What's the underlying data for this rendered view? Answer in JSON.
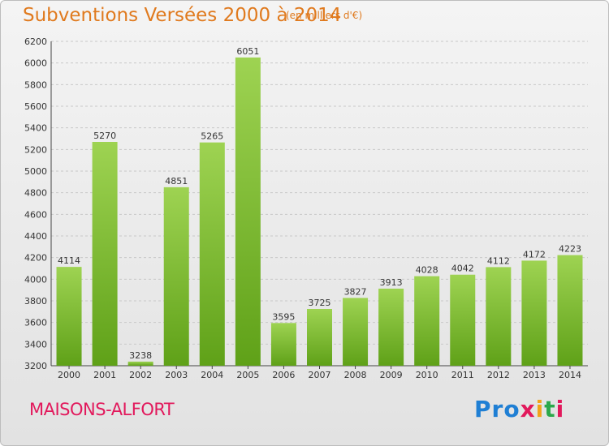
{
  "chart_data": {
    "type": "bar",
    "title": "Subventions Versées 2000 à 2014",
    "subtitle": "(en milliers d'€)",
    "categories": [
      "2000",
      "2001",
      "2002",
      "2003",
      "2004",
      "2005",
      "2006",
      "2007",
      "2008",
      "2009",
      "2010",
      "2011",
      "2012",
      "2013",
      "2014"
    ],
    "values": [
      4114,
      5270,
      3238,
      4851,
      5265,
      6051,
      3595,
      3725,
      3827,
      3913,
      4028,
      4042,
      4112,
      4172,
      4223
    ],
    "ylim": [
      3200,
      6200
    ],
    "yticks": [
      3200,
      3400,
      3600,
      3800,
      4000,
      4200,
      4400,
      4600,
      4800,
      5000,
      5200,
      5400,
      5600,
      5800,
      6000,
      6200
    ],
    "grid": true,
    "bar_color": "#7fc241"
  },
  "footer": {
    "city": "MAISONS-ALFORT",
    "logo": [
      "Pro",
      "x",
      "i",
      "t",
      "i"
    ]
  }
}
